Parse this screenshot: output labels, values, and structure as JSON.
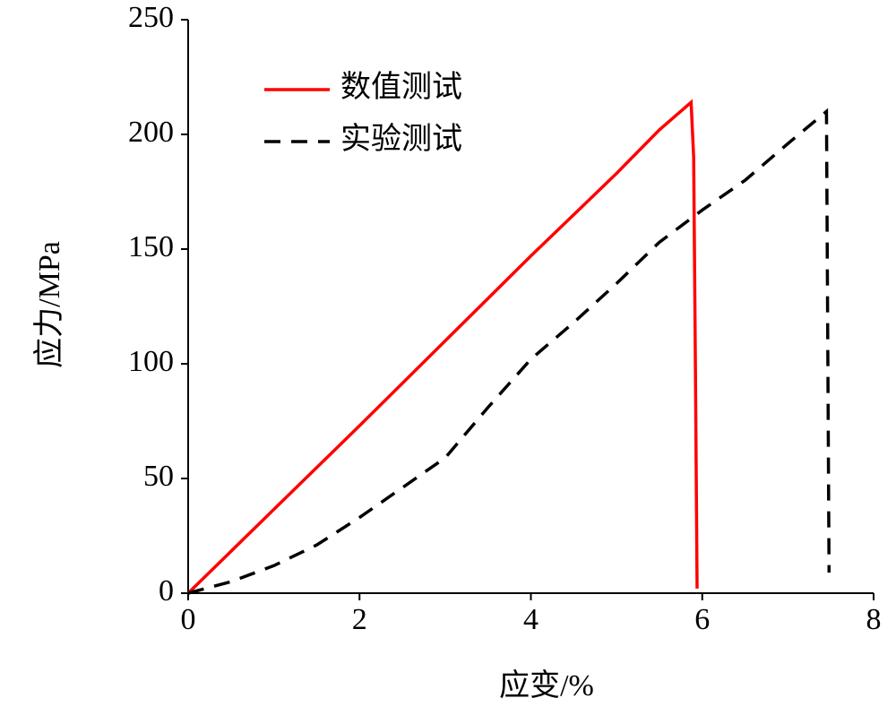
{
  "chart_data": {
    "type": "line",
    "xlabel": "应变/%",
    "ylabel": "应力/MPa",
    "xlim": [
      0,
      8
    ],
    "xticks": [
      0,
      2,
      4,
      6,
      8
    ],
    "ylim": [
      0,
      250
    ],
    "yticks": [
      0,
      50,
      100,
      150,
      200,
      250
    ],
    "grid": false,
    "legend": "upper left",
    "series": [
      {
        "name": "数值测试",
        "color": "#ff0000",
        "linestyle": "solid",
        "x": [
          0,
          1,
          2,
          3,
          4,
          4.5,
          5,
          5.5,
          5.87,
          5.9,
          5.92,
          5.94
        ],
        "values": [
          0,
          36.5,
          73,
          110,
          147,
          165,
          183,
          202,
          214,
          190,
          100,
          2
        ]
      },
      {
        "name": "实验测试",
        "color": "#000000",
        "linestyle": "dashed",
        "x": [
          0,
          0.5,
          1,
          1.5,
          2,
          2.5,
          3,
          3.5,
          4,
          4.5,
          5,
          5.5,
          6,
          6.5,
          7,
          7.45,
          7.48
        ],
        "values": [
          0,
          5,
          12,
          21,
          33,
          46,
          59,
          81,
          102,
          118,
          135,
          153,
          167,
          180,
          196,
          210,
          9
        ]
      }
    ]
  }
}
